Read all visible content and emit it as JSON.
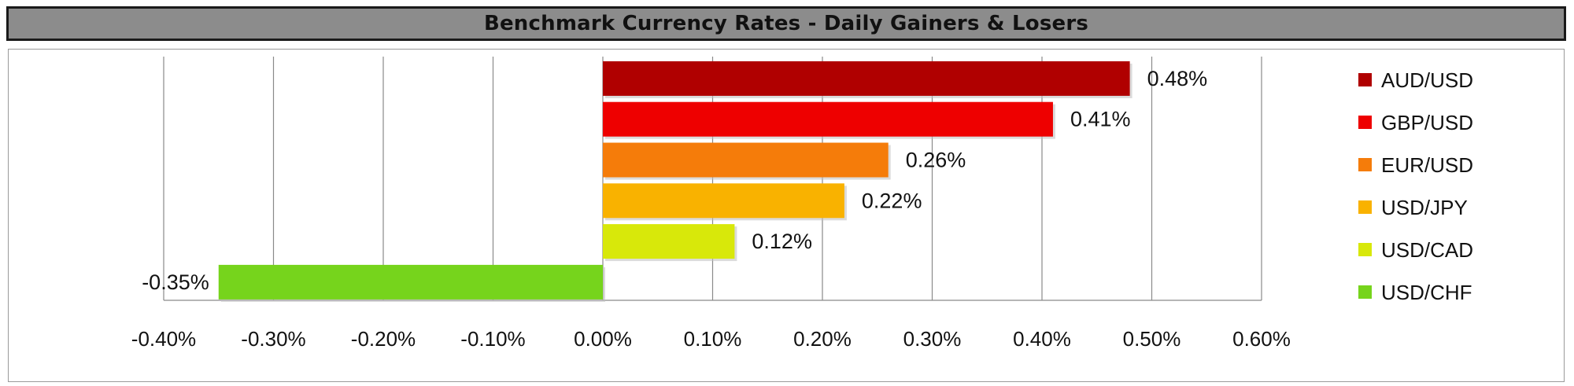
{
  "title": "Benchmark Currency Rates - Daily Gainers & Losers",
  "chart_data": {
    "type": "bar",
    "orientation": "horizontal",
    "title": "Benchmark Currency Rates - Daily Gainers & Losers",
    "xlabel": "",
    "ylabel": "",
    "xlim": [
      -0.4,
      0.6
    ],
    "x_ticks": [
      -0.4,
      -0.3,
      -0.2,
      -0.1,
      0.0,
      0.1,
      0.2,
      0.3,
      0.4,
      0.5,
      0.6
    ],
    "x_tick_labels": [
      "-0.40%",
      "-0.30%",
      "-0.20%",
      "-0.10%",
      "0.00%",
      "0.10%",
      "0.20%",
      "0.30%",
      "0.40%",
      "0.50%",
      "0.60%"
    ],
    "grid": "vertical",
    "legend_position": "right",
    "categories": [
      "AUD/USD",
      "GBP/USD",
      "EUR/USD",
      "USD/JPY",
      "USD/CAD",
      "USD/CHF"
    ],
    "values": [
      0.48,
      0.41,
      0.26,
      0.22,
      0.12,
      -0.35
    ],
    "data_labels": [
      "0.48%",
      "0.41%",
      "0.26%",
      "0.22%",
      "0.12%",
      "-0.35%"
    ],
    "colors": [
      "#b00000",
      "#ee0000",
      "#f57c0a",
      "#f9b200",
      "#d8e80a",
      "#76d41c"
    ],
    "unit": "%"
  }
}
